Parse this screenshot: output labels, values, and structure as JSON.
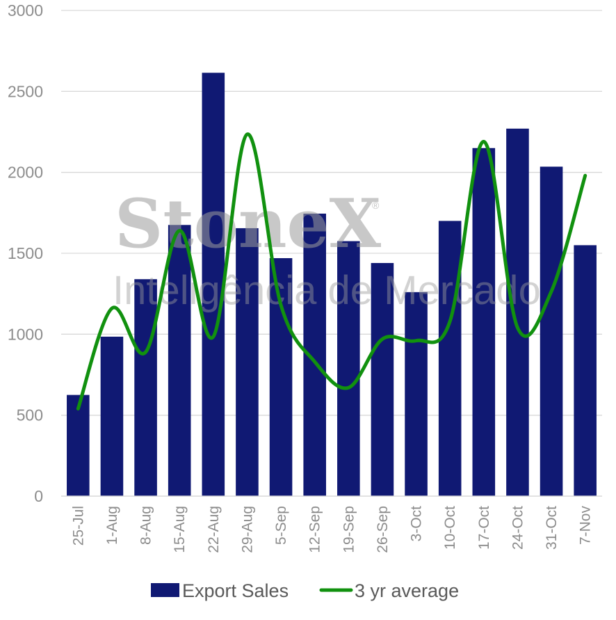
{
  "watermark": {
    "brand": "StoneX",
    "registered": "®",
    "subtitle": "Inteligência de Mercado"
  },
  "colors": {
    "bar": "#101973",
    "line": "#11910f",
    "grid": "#d9d9d9"
  },
  "chart_data": {
    "type": "bar",
    "categories": [
      "25-Jul",
      "1-Aug",
      "8-Aug",
      "15-Aug",
      "22-Aug",
      "29-Aug",
      "5-Sep",
      "12-Sep",
      "19-Sep",
      "26-Sep",
      "3-Oct",
      "10-Oct",
      "17-Oct",
      "24-Oct",
      "31-Oct",
      "7-Nov"
    ],
    "series": [
      {
        "name": "Export Sales",
        "type": "bar",
        "values": [
          625,
          985,
          1340,
          1675,
          2615,
          1655,
          1470,
          1745,
          1575,
          1440,
          1260,
          1700,
          2150,
          2270,
          2035,
          1550
        ]
      },
      {
        "name": "3 yr average",
        "type": "line",
        "smooth": true,
        "values": [
          540,
          1160,
          890,
          1640,
          985,
          2235,
          1180,
          830,
          670,
          970,
          960,
          1080,
          2190,
          1040,
          1265,
          1980
        ]
      }
    ],
    "ylim": [
      0,
      3000
    ],
    "yticks": [
      0,
      500,
      1000,
      1500,
      2000,
      2500,
      3000
    ],
    "grid": true,
    "legend": "bottom"
  }
}
